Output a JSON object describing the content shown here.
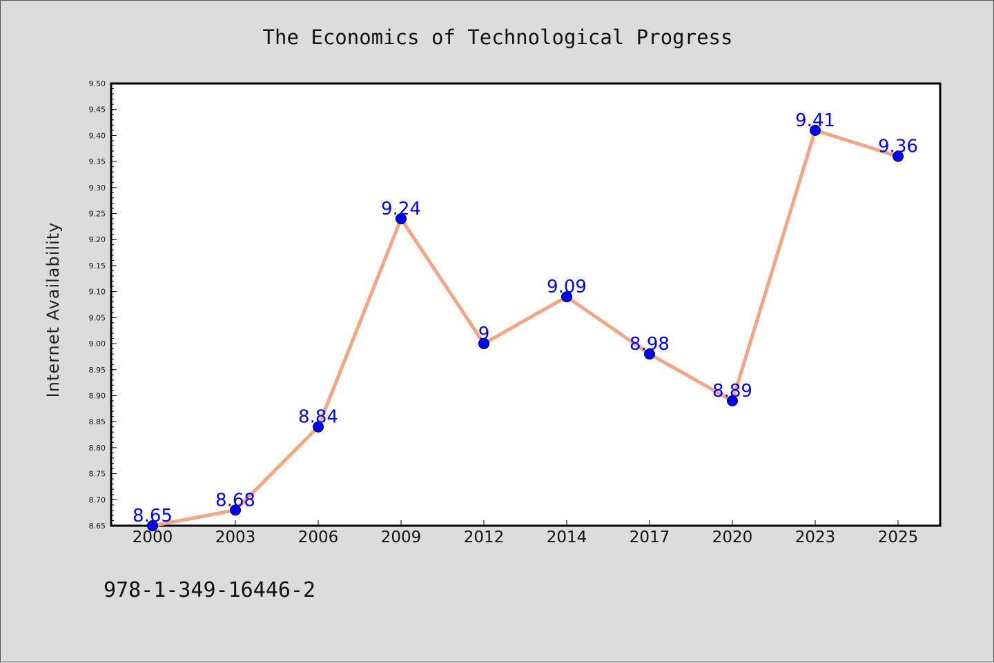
{
  "colors": {
    "background": "#dcdcdc",
    "plot_background": "#ffffff",
    "line": "#f4a582",
    "marker": "#0000ff",
    "label": "#0000ff"
  },
  "footer": {
    "code": "978-1-349-16446-2"
  },
  "chart_data": {
    "type": "line",
    "title": "The Economics of Technological Progress",
    "xlabel": "",
    "ylabel": "Internet Availability",
    "categories": [
      "2000",
      "2003",
      "2006",
      "2009",
      "2012",
      "2014",
      "2017",
      "2020",
      "2023",
      "2025"
    ],
    "series": [
      {
        "values": [
          8.65,
          8.68,
          8.84,
          9.24,
          9.0,
          9.09,
          8.98,
          8.89,
          9.41,
          9.36
        ],
        "data_labels": [
          "8.65",
          "8.68",
          "8.84",
          "9.24",
          "9",
          "9.09",
          "8.98",
          "8.89",
          "9.41",
          "9.36"
        ]
      }
    ],
    "ylim": [
      8.65,
      9.5
    ],
    "yticks": [
      "8.65",
      "8.70",
      "8.75",
      "8.80",
      "8.85",
      "8.90",
      "8.95",
      "9.00",
      "9.05",
      "9.10",
      "9.15",
      "9.20",
      "9.25",
      "9.30",
      "9.35",
      "9.40",
      "9.45",
      "9.50"
    ],
    "grid": false,
    "legend": "none",
    "markers": "circle"
  }
}
